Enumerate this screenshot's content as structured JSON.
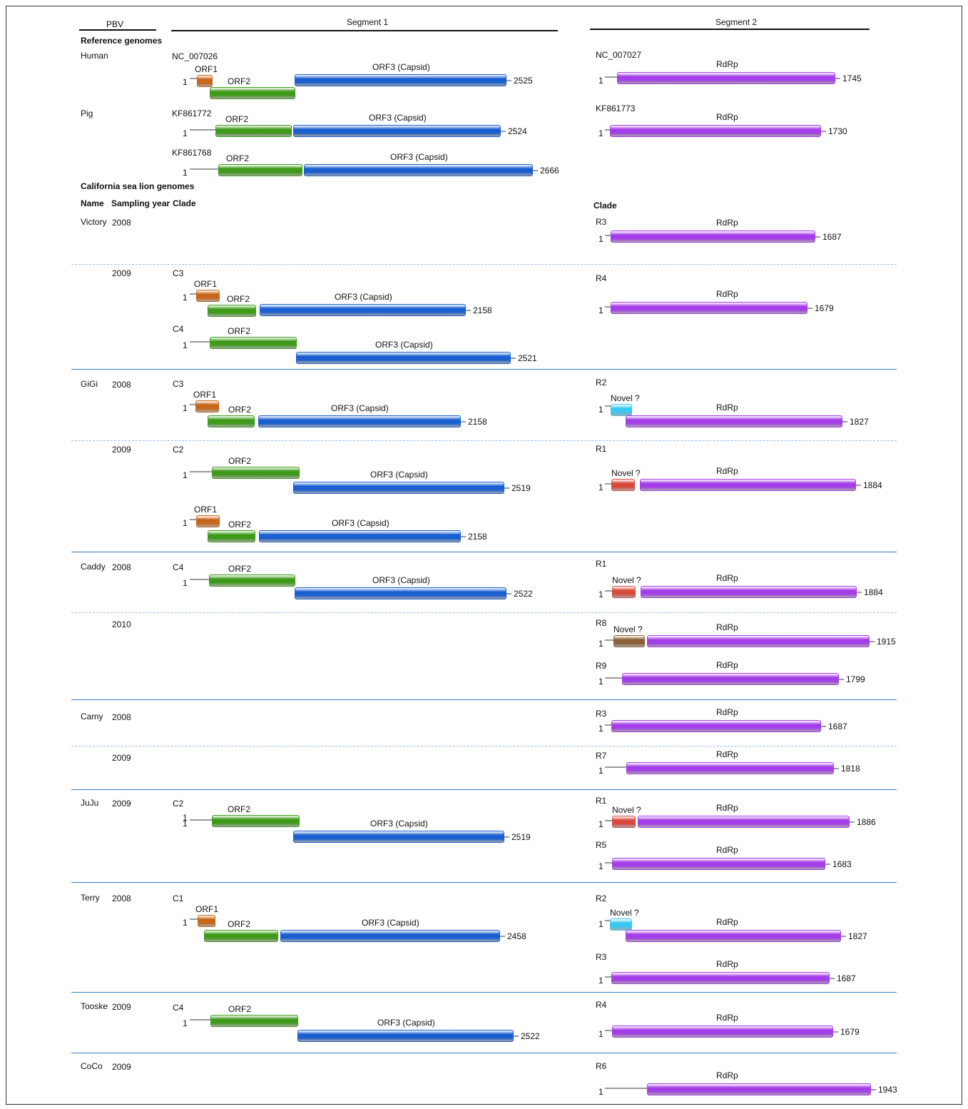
{
  "header": {
    "pbv": "PBV",
    "segment1": "Segment 1",
    "segment2": "Segment 2",
    "reference_genomes": "Reference genomes",
    "sea_lion_genomes": "California sea lion genomes",
    "col_name": "Name",
    "col_year": "Sampling year",
    "col_clade": "Clade",
    "seg2_clade": "Clade"
  },
  "colors": {
    "orf1": "#c8661a",
    "orf2": "#3f9a1a",
    "orf3": "#1a5fd0",
    "rdrp": "#a43ee8",
    "novel_cyan": "#38c8f2",
    "novel_red": "#d84a3c",
    "novel_brown": "#8b6038",
    "separator": "#3a7dc9",
    "line": "#9a9a9a"
  },
  "labels": {
    "one": "1",
    "orf1": "ORF1",
    "orf2": "ORF2",
    "orf3": "ORF3 (Capsid)",
    "rdrp": "RdRp",
    "novel": "Novel ?"
  },
  "rows": [
    {
      "name": "Human",
      "year": "",
      "segment1": [
        {
          "accession": "NC_007026",
          "orfs": [
            "ORF1",
            "ORF2",
            "ORF3 (Capsid)"
          ],
          "length": "2525"
        }
      ],
      "segment2": [
        {
          "accession": "NC_007027",
          "rdrp_only": true,
          "length": "1745"
        }
      ]
    },
    {
      "name": "Pig",
      "year": "",
      "segment1": [
        {
          "accession": "KF861772",
          "orfs": [
            "ORF2",
            "ORF3 (Capsid)"
          ],
          "length": "2524"
        },
        {
          "accession": "KF861768",
          "orfs": [
            "ORF2",
            "ORF3 (Capsid)"
          ],
          "length": "2666"
        }
      ],
      "segment2": [
        {
          "accession": "KF861773",
          "rdrp_only": true,
          "length": "1730"
        }
      ]
    },
    {
      "name": "Victory",
      "year": "2008",
      "segment1": [],
      "segment2": [
        {
          "clade": "R3",
          "length": "1687"
        }
      ]
    },
    {
      "name": "",
      "year": "2009",
      "segment1": [
        {
          "clade": "C3",
          "length": "2158"
        },
        {
          "clade": "C4",
          "length": "2521"
        }
      ],
      "segment2": [
        {
          "clade": "R4",
          "length": "1679"
        }
      ]
    },
    {
      "name": "GiGi",
      "year": "2008",
      "segment1": [
        {
          "clade": "C3",
          "length": "2158"
        }
      ],
      "segment2": [
        {
          "clade": "R2",
          "novel": "cyan",
          "length": "1827"
        }
      ]
    },
    {
      "name": "",
      "year": "2009",
      "segment1": [
        {
          "clade": "C2",
          "length": "2519"
        },
        {
          "clade": "",
          "length": "2158"
        }
      ],
      "segment2": [
        {
          "clade": "R1",
          "novel": "red",
          "length": "1884"
        }
      ]
    },
    {
      "name": "Caddy",
      "year": "2008",
      "segment1": [
        {
          "clade": "C4",
          "length": "2522"
        }
      ],
      "segment2": [
        {
          "clade": "R1",
          "novel": "red",
          "length": "1884"
        }
      ]
    },
    {
      "name": "",
      "year": "2010",
      "segment1": [],
      "segment2": [
        {
          "clade": "R8",
          "novel": "brown",
          "length": "1915"
        },
        {
          "clade": "R9",
          "length": "1799"
        }
      ]
    },
    {
      "name": "Camy",
      "year": "2008",
      "segment1": [],
      "segment2": [
        {
          "clade": "R3",
          "length": "1687"
        }
      ]
    },
    {
      "name": "",
      "year": "2009",
      "segment1": [],
      "segment2": [
        {
          "clade": "R7",
          "length": "1818"
        }
      ]
    },
    {
      "name": "JuJu",
      "year": "2009",
      "segment1": [
        {
          "clade": "C2",
          "length": "2519"
        }
      ],
      "segment2": [
        {
          "clade": "R1",
          "novel": "red",
          "length": "1886"
        },
        {
          "clade": "R5",
          "length": "1683"
        }
      ]
    },
    {
      "name": "Terry",
      "year": "2008",
      "segment1": [
        {
          "clade": "C1",
          "length": "2458"
        }
      ],
      "segment2": [
        {
          "clade": "R2",
          "novel": "cyan",
          "length": "1827"
        },
        {
          "clade": "R3",
          "length": "1687"
        }
      ]
    },
    {
      "name": "Tooske",
      "year": "2009",
      "segment1": [
        {
          "clade": "C4",
          "length": "2522"
        }
      ],
      "segment2": [
        {
          "clade": "R4",
          "length": "1679"
        }
      ]
    },
    {
      "name": "CoCo",
      "year": "2009",
      "segment1": [],
      "segment2": [
        {
          "clade": "R6",
          "length": "1943"
        }
      ]
    }
  ]
}
